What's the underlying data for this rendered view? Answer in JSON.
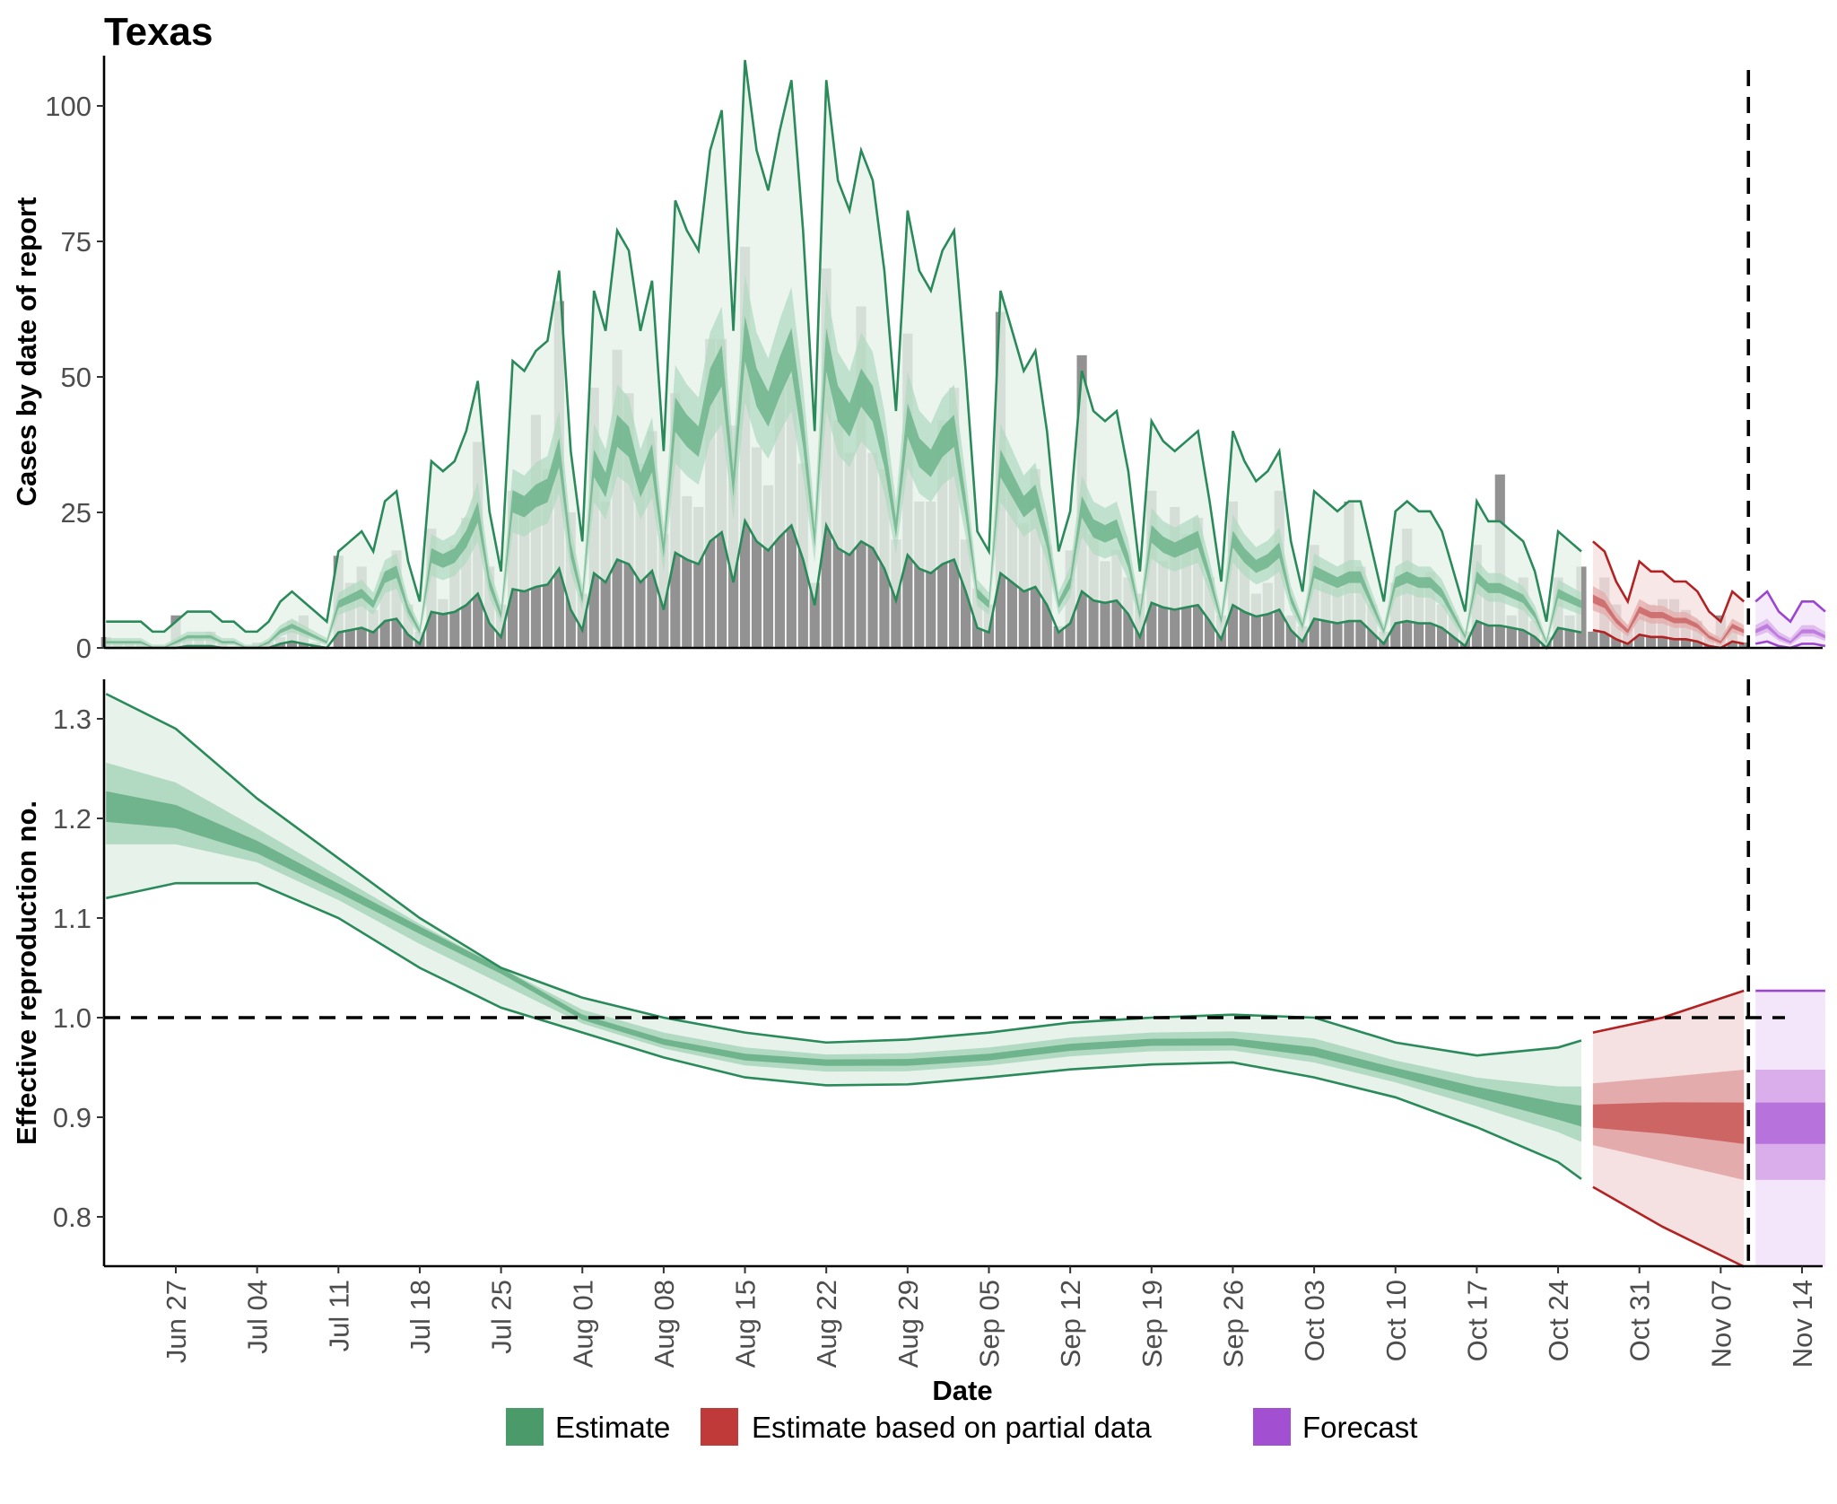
{
  "title": "Texas",
  "colors": {
    "estimate": "#4a9a6a",
    "partial": "#c03a3a",
    "forecast": "#a24fd1",
    "bars": "#8c8c8c"
  },
  "legend": {
    "placement": "bottom",
    "items": [
      {
        "label": "Estimate",
        "color": "#4a9a6a"
      },
      {
        "label": "Estimate based on partial data",
        "color": "#c03a3a"
      },
      {
        "label": "Forecast",
        "color": "#a24fd1"
      }
    ]
  },
  "x_axis": {
    "label": "Date",
    "ticks": [
      "Jun 27",
      "Jul 04",
      "Jul 11",
      "Jul 18",
      "Jul 25",
      "Aug 01",
      "Aug 08",
      "Aug 15",
      "Aug 22",
      "Aug 29",
      "Sep 05",
      "Sep 12",
      "Sep 19",
      "Sep 26",
      "Oct 03",
      "Oct 10",
      "Oct 17",
      "Oct 24",
      "Oct 31",
      "Nov 07",
      "Nov 14"
    ]
  },
  "chart_data": [
    {
      "type": "bar",
      "panel": "cases",
      "ylabel": "Cases by date of report",
      "ylim": [
        0,
        108
      ],
      "yticks": [
        "0",
        "25",
        "50",
        "75",
        "100"
      ],
      "grid": false,
      "vertical_reference_date": "Nov 09",
      "reported_cases": {
        "start": "Jun 21",
        "values": [
          2,
          1,
          1,
          1,
          0,
          0,
          6,
          2,
          2,
          3,
          1,
          0,
          0,
          1,
          1,
          2,
          5,
          6,
          1,
          0,
          17,
          12,
          15,
          7,
          14,
          18,
          8,
          3,
          22,
          9,
          19,
          24,
          38,
          15,
          8,
          29,
          28,
          43,
          33,
          64,
          25,
          10,
          48,
          27,
          55,
          47,
          34,
          40,
          21,
          47,
          28,
          26,
          57,
          57,
          41,
          74,
          37,
          30,
          48,
          50,
          34,
          12,
          70,
          42,
          36,
          63,
          36,
          33,
          20,
          58,
          27,
          27,
          42,
          48,
          20,
          11,
          8,
          62,
          30,
          23,
          33,
          19,
          4,
          18,
          54,
          21,
          16,
          18,
          13,
          10,
          29,
          16,
          26,
          21,
          24,
          13,
          6,
          27,
          17,
          10,
          12,
          29,
          6,
          4,
          19,
          12,
          11,
          27,
          15,
          8,
          3,
          12,
          22,
          11,
          14,
          8,
          6,
          3,
          19,
          11,
          32,
          6,
          13,
          5,
          2,
          13,
          6,
          15,
          3,
          13,
          8,
          4,
          6,
          8,
          9,
          9,
          7,
          5,
          2,
          6,
          4,
          1
        ]
      },
      "estimate_median": {
        "start": "Jun 21",
        "values": [
          1,
          1,
          1,
          1,
          0,
          0,
          1,
          2,
          2,
          2,
          1,
          1,
          0,
          0,
          1,
          3,
          4,
          3,
          2,
          1,
          8,
          9,
          10,
          8,
          13,
          14,
          7,
          3,
          17,
          16,
          17,
          20,
          25,
          12,
          6,
          27,
          26,
          28,
          29,
          36,
          18,
          9,
          34,
          30,
          40,
          38,
          30,
          35,
          18,
          43,
          40,
          38,
          48,
          52,
          30,
          57,
          48,
          44,
          50,
          55,
          40,
          20,
          55,
          45,
          42,
          48,
          45,
          36,
          22,
          42,
          36,
          34,
          38,
          40,
          26,
          10,
          8,
          34,
          30,
          26,
          28,
          20,
          8,
          12,
          26,
          22,
          21,
          22,
          16,
          6,
          21,
          19,
          18,
          19,
          20,
          13,
          5,
          20,
          17,
          15,
          16,
          18,
          9,
          4,
          14,
          13,
          12,
          13,
          13,
          8,
          3,
          12,
          13,
          12,
          12,
          10,
          6,
          2,
          13,
          11,
          11,
          10,
          9,
          6,
          1,
          10,
          9,
          8
        ]
      },
      "partial_median": {
        "start": "Oct 27",
        "values": [
          9,
          8,
          5,
          3,
          7,
          6,
          6,
          5,
          5,
          4,
          2,
          1,
          4,
          3
        ]
      },
      "forecast_median": {
        "start": "Nov 10",
        "values": [
          3,
          4,
          2,
          1,
          3,
          3,
          2
        ]
      }
    },
    {
      "type": "area",
      "panel": "rt",
      "ylabel": "Effective reproduction no.",
      "ylim": [
        0.75,
        1.34
      ],
      "yticks": [
        "0.8",
        "0.9",
        "1.0",
        "1.1",
        "1.2",
        "1.3"
      ],
      "reference_line": 1.0,
      "grid": false,
      "estimate": {
        "dates": [
          "Jun 21",
          "Jun 27",
          "Jul 04",
          "Jul 11",
          "Jul 18",
          "Jul 25",
          "Aug 01",
          "Aug 08",
          "Aug 15",
          "Aug 22",
          "Aug 29",
          "Sep 05",
          "Sep 12",
          "Sep 19",
          "Sep 26",
          "Oct 03",
          "Oct 10",
          "Oct 17",
          "Oct 24",
          "Oct 26"
        ],
        "median": [
          1.21,
          1.2,
          1.17,
          1.13,
          1.09,
          1.05,
          1.0,
          0.975,
          0.96,
          0.955,
          0.955,
          0.96,
          0.97,
          0.975,
          0.975,
          0.965,
          0.945,
          0.925,
          0.905,
          0.9
        ],
        "upper_90": [
          1.325,
          1.29,
          1.22,
          1.16,
          1.1,
          1.05,
          1.02,
          1.0,
          0.985,
          0.975,
          0.978,
          0.985,
          0.995,
          1.0,
          1.003,
          1.0,
          0.975,
          0.962,
          0.97,
          0.977
        ],
        "lower_90": [
          1.12,
          1.135,
          1.135,
          1.1,
          1.05,
          1.01,
          0.985,
          0.96,
          0.94,
          0.932,
          0.933,
          0.94,
          0.948,
          0.953,
          0.955,
          0.94,
          0.92,
          0.89,
          0.855,
          0.838
        ]
      },
      "partial": {
        "dates": [
          "Oct 27",
          "Nov 02",
          "Nov 09"
        ],
        "median": [
          0.9,
          0.9,
          0.895
        ],
        "upper_90": [
          0.985,
          1.0,
          1.027
        ],
        "lower_90": [
          0.83,
          0.79,
          0.75
        ]
      },
      "forecast": {
        "dates": [
          "Nov 10",
          "Nov 16"
        ],
        "median": [
          0.895,
          0.895
        ],
        "upper_90": [
          1.027,
          1.027
        ],
        "lower_90": [
          0.75,
          0.75
        ]
      }
    }
  ]
}
